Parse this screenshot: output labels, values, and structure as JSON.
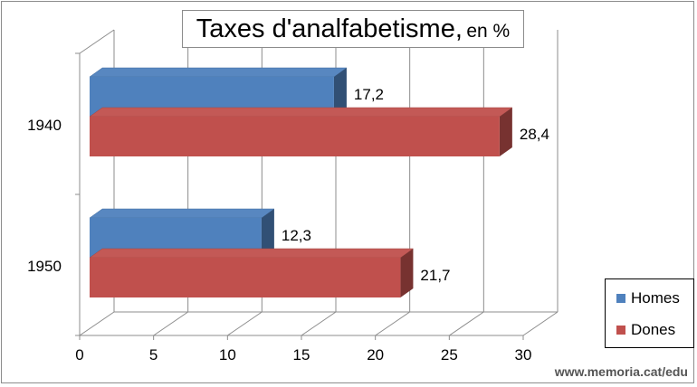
{
  "chart_data": {
    "type": "bar",
    "orientation": "horizontal",
    "title": "Taxes d'analfabetisme,",
    "title_unit": "en %",
    "categories": [
      "1940",
      "1950"
    ],
    "series": [
      {
        "name": "Homes",
        "values": [
          17.2,
          12.3
        ],
        "color": "#4f81bd",
        "value_labels": [
          "17,2",
          "12,3"
        ]
      },
      {
        "name": "Dones",
        "values": [
          28.4,
          21.7
        ],
        "color": "#c0504d",
        "value_labels": [
          "28,4",
          "21,7"
        ]
      }
    ],
    "xlim": [
      0,
      30
    ],
    "x_ticks": [
      "0",
      "5",
      "10",
      "15",
      "20",
      "25",
      "30"
    ],
    "grid": true,
    "style": "3d-clustered-bar",
    "legend_position": "bottom-right"
  },
  "watermark": "www.memoria.cat/edu"
}
